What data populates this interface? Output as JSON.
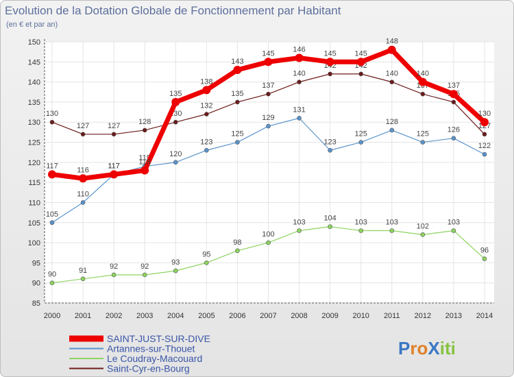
{
  "chart_data": {
    "type": "line",
    "title": "Evolution de la Dotation Globale de Fonctionnement par Habitant",
    "subtitle": "(en € et par an)",
    "xlabel": "",
    "ylabel": "",
    "ylim": [
      85,
      150
    ],
    "yticks": [
      85,
      90,
      95,
      100,
      105,
      110,
      115,
      120,
      125,
      130,
      135,
      140,
      145,
      150
    ],
    "categories": [
      "2000",
      "2001",
      "2002",
      "2003",
      "2004",
      "2005",
      "2006",
      "2007",
      "2008",
      "2009",
      "2010",
      "2011",
      "2012",
      "2013",
      "2014"
    ],
    "grid": true,
    "series": [
      {
        "name": "Saint-Cyr-en-Bourg",
        "color": "#6b1a1a",
        "values": [
          130,
          127,
          127,
          128,
          130,
          132,
          135,
          137,
          140,
          142,
          142,
          140,
          137,
          135,
          127
        ]
      },
      {
        "name": "Le Coudray-Macouard",
        "color": "#8ed35f",
        "values": [
          90,
          91,
          92,
          92,
          93,
          95,
          98,
          100,
          103,
          104,
          103,
          103,
          102,
          103,
          96
        ]
      },
      {
        "name": "Artannes-sur-Thouet",
        "color": "#5a94cc",
        "values": [
          105,
          110,
          117,
          119,
          120,
          123,
          125,
          129,
          131,
          123,
          125,
          128,
          125,
          126,
          122
        ]
      },
      {
        "name": "SAINT-JUST-SUR-DIVE",
        "color": "#ee0000",
        "values": [
          117,
          116,
          117,
          118,
          135,
          138,
          143,
          145,
          146,
          145,
          145,
          148,
          140,
          137,
          130
        ]
      }
    ],
    "legend": [
      "SAINT-JUST-SUR-DIVE",
      "Artannes-sur-Thouet",
      "Le Coudray-Macouard",
      "Saint-Cyr-en-Bourg"
    ],
    "legend_position": "bottom-left"
  },
  "brand": {
    "text": "ProXiti",
    "letters": [
      "P",
      "r",
      "o",
      "X",
      "i",
      "t",
      "i"
    ],
    "colors": [
      "#3a77c4",
      "#e0802a",
      "#e0802a",
      "#3a77c4",
      "#86c240",
      "#86c240",
      "#86c240"
    ]
  }
}
